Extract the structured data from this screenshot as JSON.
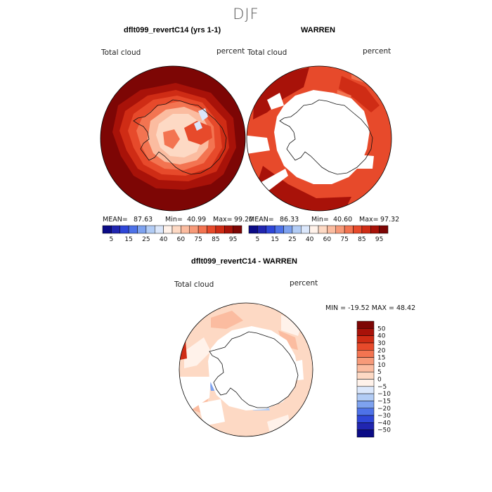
{
  "season": "DJF",
  "colors": {
    "seq": [
      "#0b0b86",
      "#2126b0",
      "#2f47d8",
      "#4e72e8",
      "#7ea2ef",
      "#b2ccf5",
      "#dbe7fb",
      "#fff2ea",
      "#fdd9c4",
      "#fbbca0",
      "#f79a79",
      "#f37451",
      "#e74a2b",
      "#cf2c15",
      "#a81209",
      "#7d0605"
    ],
    "diff": [
      "#7d0605",
      "#a81209",
      "#cf2c15",
      "#e74a2b",
      "#f37451",
      "#f79a79",
      "#fbbca0",
      "#fdd9c4",
      "#fff2ea",
      "#dbe7fb",
      "#b2ccf5",
      "#7ea2ef",
      "#4e72e8",
      "#2f47d8",
      "#2126b0",
      "#0b0b86"
    ]
  },
  "chart_data": [
    {
      "type": "heatmap",
      "id": "model",
      "title": "dflt099_revertC14 (yrs 1-1)",
      "variable_label": "Total cloud",
      "units_label": "percent",
      "mean_label": "MEAN=",
      "mean": "87.63",
      "min_label": "Min=",
      "min": "40.99",
      "max_label": "Max=",
      "max": "99.20",
      "colorbar_levels": [
        5,
        10,
        15,
        20,
        25,
        30,
        35,
        40,
        50,
        60,
        70,
        75,
        80,
        85,
        90,
        95
      ],
      "colorbar_ticks": [
        "5",
        "15",
        "25",
        "40",
        "60",
        "75",
        "85",
        "95"
      ]
    },
    {
      "type": "heatmap",
      "id": "obs",
      "title": "WARREN",
      "variable_label": "Total cloud",
      "units_label": "percent",
      "mean_label": "MEAN=",
      "mean": "86.33",
      "min_label": "Min=",
      "min": "40.60",
      "max_label": "Max=",
      "max": "97.32",
      "colorbar_levels": [
        5,
        10,
        15,
        20,
        25,
        30,
        35,
        40,
        50,
        60,
        70,
        75,
        80,
        85,
        90,
        95
      ],
      "colorbar_ticks": [
        "5",
        "15",
        "25",
        "40",
        "60",
        "75",
        "85",
        "95"
      ]
    },
    {
      "type": "heatmap",
      "id": "diff",
      "title": "dflt099_revertC14 - WARREN",
      "variable_label": "Total cloud",
      "units_label": "percent",
      "minmax_text": "MIN = -19.52 MAX =  48.42",
      "min": -19.52,
      "max": 48.42,
      "colorbar_ticks": [
        "50",
        "40",
        "30",
        "20",
        "15",
        "10",
        "5",
        "0",
        "−5",
        "−10",
        "−15",
        "−20",
        "−30",
        "−40",
        "−50"
      ]
    }
  ]
}
